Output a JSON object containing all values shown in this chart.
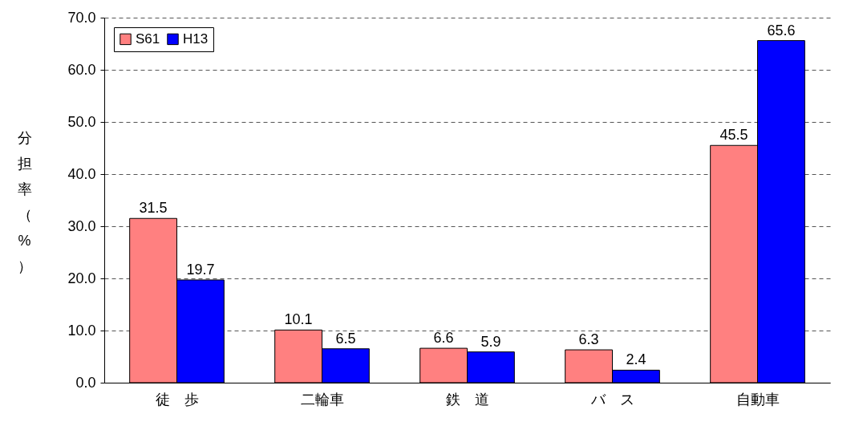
{
  "chart_data": {
    "type": "bar",
    "ylabel": "分担率（%）",
    "categories": [
      "徒　歩",
      "二輪車",
      "鉄　道",
      "バ　ス",
      "自動車"
    ],
    "series": [
      {
        "name": "S61",
        "color": "#ff8080",
        "values": [
          31.5,
          10.1,
          6.6,
          6.3,
          45.5
        ]
      },
      {
        "name": "H13",
        "color": "#0000ff",
        "values": [
          19.7,
          6.5,
          5.9,
          2.4,
          65.6
        ]
      }
    ],
    "ylim": [
      0,
      70
    ],
    "yticks": [
      {
        "value": 0,
        "label": "0.0"
      },
      {
        "value": 10,
        "label": "10.0"
      },
      {
        "value": 20,
        "label": "20.0"
      },
      {
        "value": 30,
        "label": "30.0"
      },
      {
        "value": 40,
        "label": "40.0"
      },
      {
        "value": 50,
        "label": "50.0"
      },
      {
        "value": 60,
        "label": "60.0"
      },
      {
        "value": 70,
        "label": "70.0"
      }
    ],
    "grid": "y",
    "legend": "top left",
    "data_labels": true
  }
}
